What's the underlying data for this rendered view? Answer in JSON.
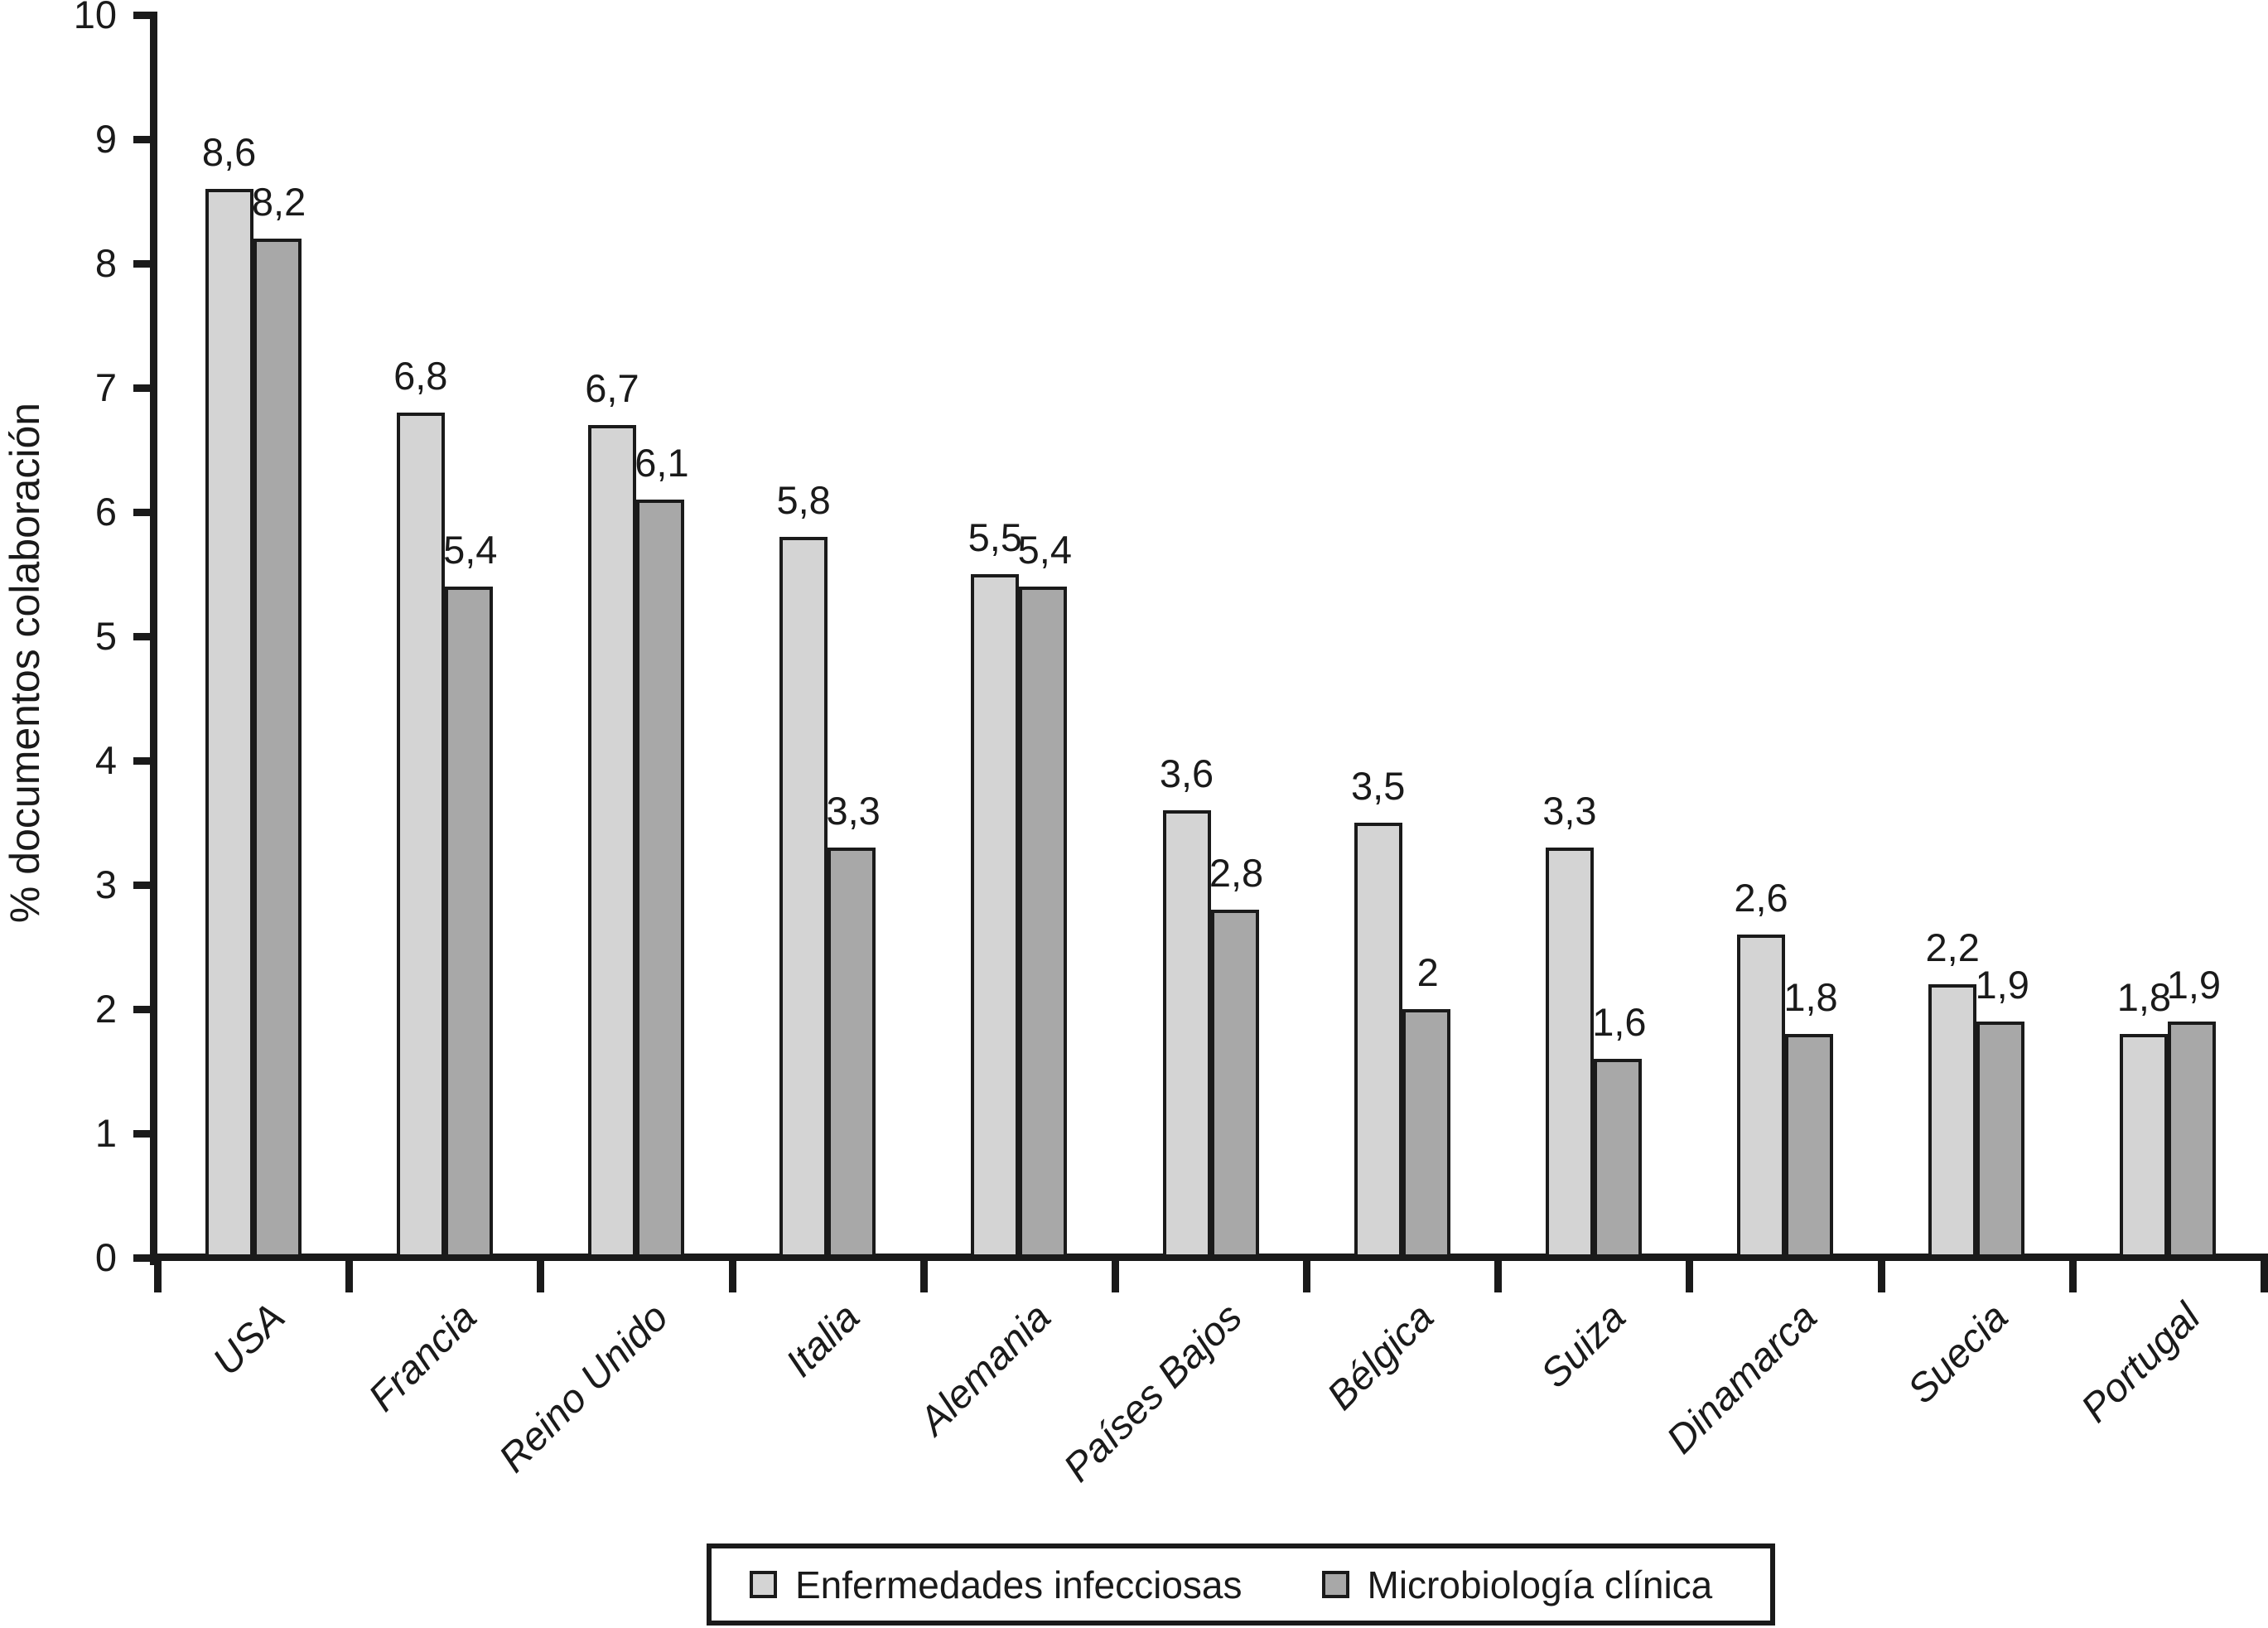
{
  "figure": {
    "y_axis_title": "% documentos colaboración"
  },
  "chart_data": {
    "type": "bar",
    "title": "",
    "xlabel": "",
    "ylabel": "% documentos colaboración",
    "ylim": [
      0,
      10
    ],
    "yticks": [
      0,
      1,
      2,
      3,
      4,
      5,
      6,
      7,
      8,
      9,
      10
    ],
    "grid": false,
    "legend_position": "bottom",
    "decimal_separator": ",",
    "bar_value_labels": true,
    "categories": [
      "USA",
      "Francia",
      "Reino Unido",
      "Italia",
      "Alemania",
      "Países Bajos",
      "Bélgica",
      "Suiza",
      "Dinamarca",
      "Suecia",
      "Portugal"
    ],
    "series": [
      {
        "name": "Enfermedades infecciosas",
        "color": "#d4d4d4",
        "values": [
          8.6,
          6.8,
          6.7,
          5.8,
          5.5,
          3.6,
          3.5,
          3.3,
          2.6,
          2.2,
          1.8
        ],
        "value_labels": [
          "8,6",
          "6,8",
          "6,7",
          "5,8",
          "5,5",
          "3,6",
          "3,5",
          "3,3",
          "2,6",
          "2,2",
          "1,8"
        ]
      },
      {
        "name": "Microbiología clínica",
        "color": "#a8a8a8",
        "values": [
          8.2,
          5.4,
          6.1,
          3.3,
          5.4,
          2.8,
          2,
          1.6,
          1.8,
          1.9,
          1.9
        ],
        "value_labels": [
          "8,2",
          "5,4",
          "6,1",
          "3,3",
          "5,4",
          "2,8",
          "2",
          "1,6",
          "1,8",
          "1,9",
          "1,9"
        ]
      }
    ],
    "axis_color": "#1a1a1a",
    "text_color": "#1a1a1a"
  }
}
